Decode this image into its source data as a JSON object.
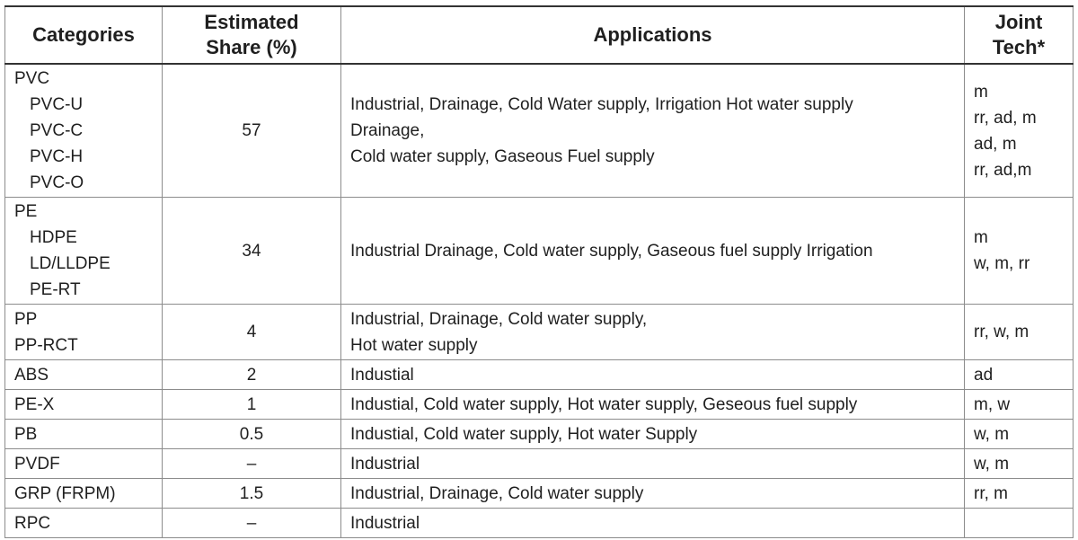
{
  "header": {
    "categories": "Categories",
    "share_line1": "Estimated",
    "share_line2": "Share (%)",
    "applications": "Applications",
    "joint_line1": "Joint",
    "joint_line2": "Tech*"
  },
  "rows": [
    {
      "category": "PVC",
      "subcategories": [
        "PVC-U",
        "PVC-C",
        "PVC-H",
        "PVC-O"
      ],
      "share": "57",
      "applications": [
        "Industrial, Drainage, Cold Water supply, Irrigation Hot water supply",
        "Drainage,",
        "Cold water supply, Gaseous Fuel supply"
      ],
      "joint": [
        "m",
        "rr, ad, m",
        "ad, m",
        "rr, ad,m"
      ]
    },
    {
      "category": "PE",
      "subcategories": [
        "HDPE",
        "LD/LLDPE",
        "PE-RT"
      ],
      "share": "34",
      "applications": [
        "Industrial Drainage, Cold water supply, Gaseous fuel supply Irrigation"
      ],
      "joint": [
        "m",
        "w, m, rr"
      ]
    },
    {
      "category": "PP",
      "category2": "PP-RCT",
      "share": "4",
      "applications": [
        "Industrial, Drainage, Cold water supply,",
        "Hot water supply"
      ],
      "joint": [
        "rr, w, m"
      ]
    },
    {
      "category": "ABS",
      "share": "2",
      "applications": [
        "Industial"
      ],
      "joint": [
        "ad"
      ]
    },
    {
      "category": "PE-X",
      "share": "1",
      "applications": [
        "Industial, Cold water supply, Hot water supply, Geseous fuel supply"
      ],
      "joint": [
        "m, w"
      ]
    },
    {
      "category": "PB",
      "share": "0.5",
      "applications": [
        "Industial, Cold water supply, Hot water Supply"
      ],
      "joint": [
        "w, m"
      ]
    },
    {
      "category": "PVDF",
      "share": "–",
      "applications": [
        "Industrial"
      ],
      "joint": [
        "w, m"
      ]
    },
    {
      "category": "GRP (FRPM)",
      "share": "1.5",
      "applications": [
        "Industrial, Drainage, Cold water supply"
      ],
      "joint": [
        "rr, m"
      ]
    },
    {
      "category": "RPC",
      "share": "–",
      "applications": [
        "Industrial"
      ],
      "joint": [
        ""
      ]
    }
  ]
}
